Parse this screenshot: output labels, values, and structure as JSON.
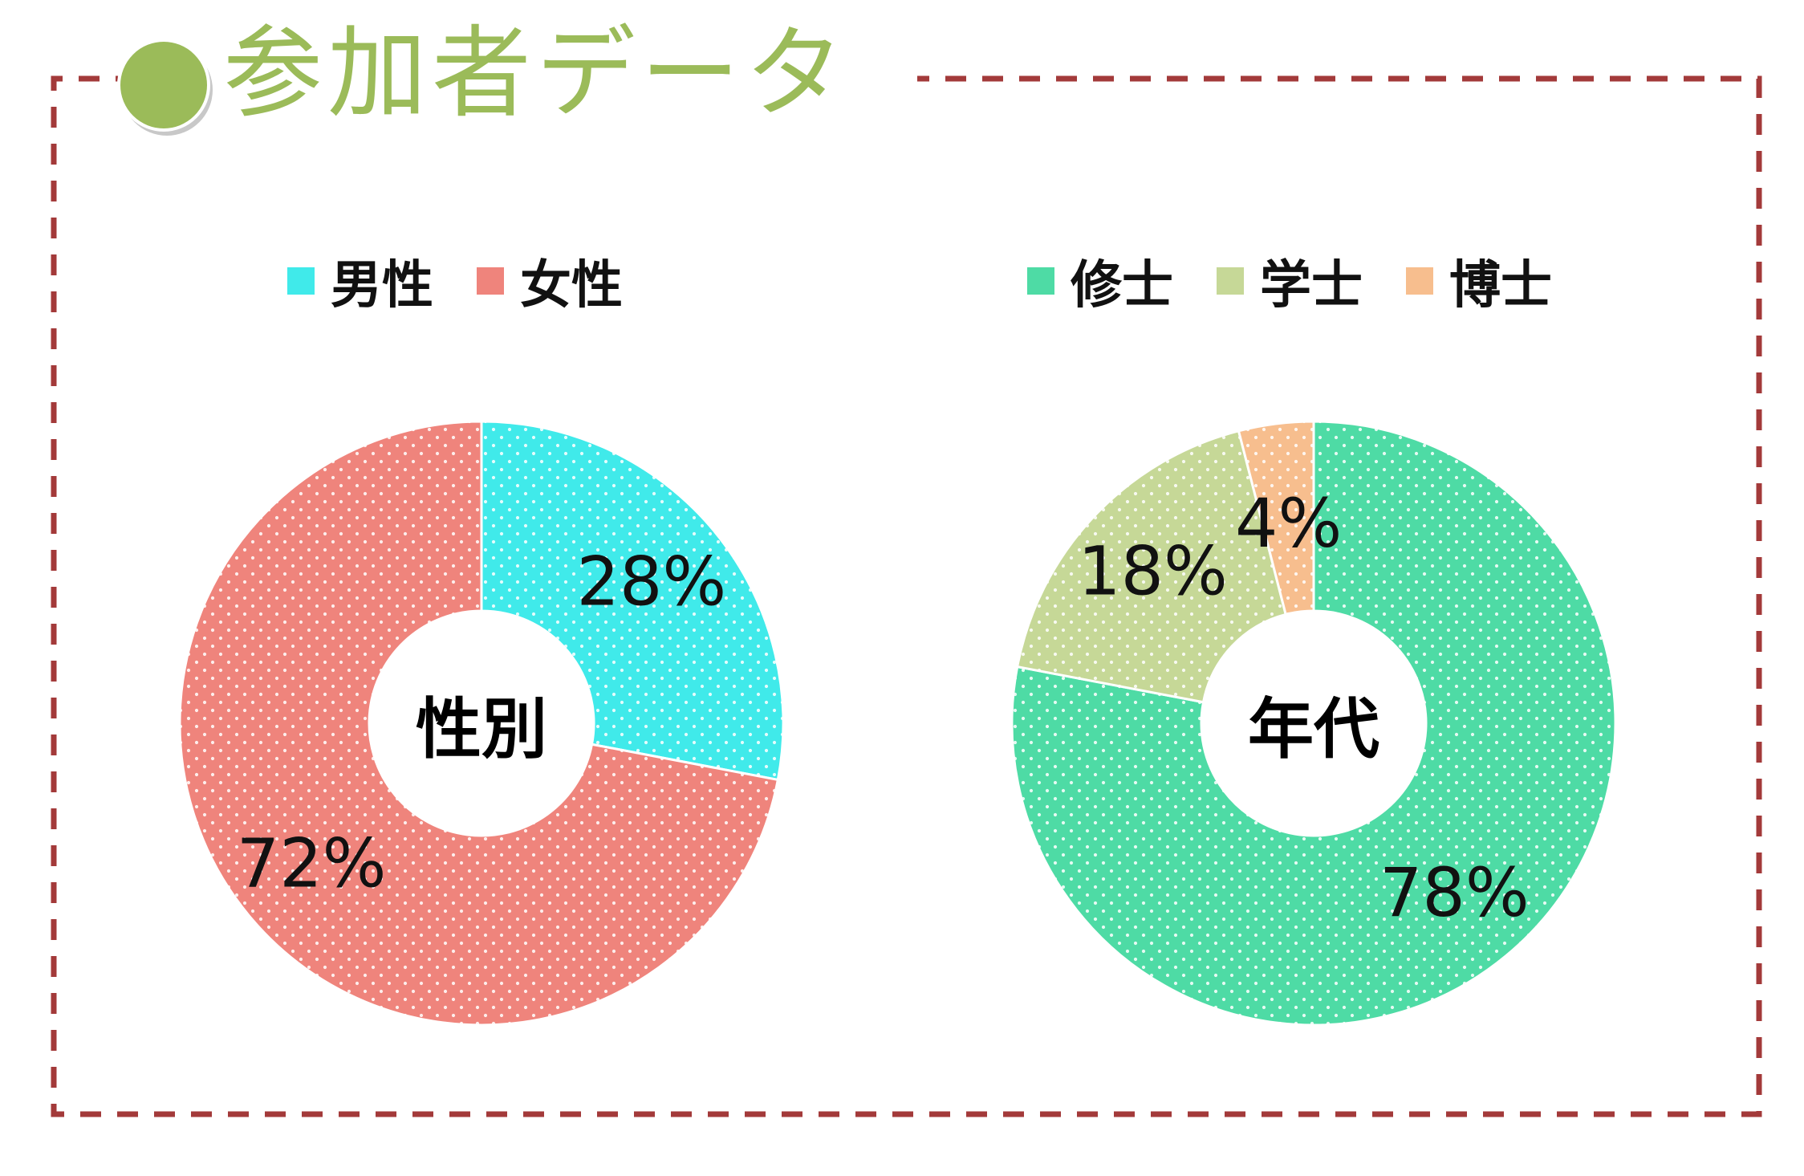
{
  "page": {
    "title": "参加者データ",
    "accent_color": "#9bbb59",
    "border_color": "#a33a3a"
  },
  "chart_data": [
    {
      "type": "donut",
      "center_label": "性別",
      "legend_position": "top",
      "categories": [
        "男性",
        "女性"
      ],
      "values": [
        28,
        72
      ],
      "value_labels": [
        "28%",
        "72%"
      ],
      "colors": [
        "#40eaea",
        "#ef847c"
      ]
    },
    {
      "type": "donut",
      "center_label": "年代",
      "legend_position": "top",
      "categories": [
        "修士",
        "学士",
        "博士"
      ],
      "values": [
        78,
        18,
        4
      ],
      "value_labels": [
        "78%",
        "18%",
        "4%"
      ],
      "colors": [
        "#4edba5",
        "#c6d897",
        "#f7be8e"
      ]
    }
  ]
}
